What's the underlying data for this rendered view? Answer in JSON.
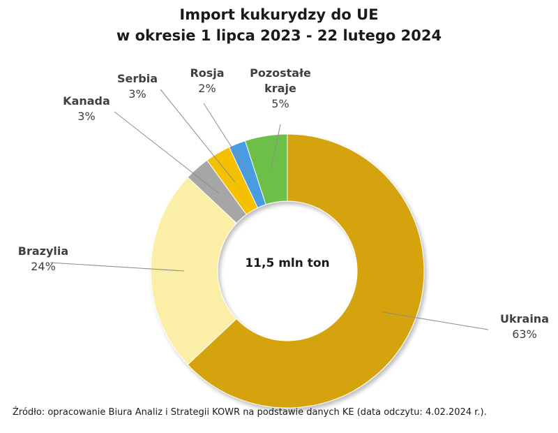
{
  "chart_data": {
    "type": "pie",
    "title": [
      "Import kukurydzy do UE",
      "w okresie 1 lipca 2023 - 22 lutego 2024"
    ],
    "center_label": "11,5 mln ton",
    "slices": [
      {
        "name": "Ukraina",
        "label_lines": [
          "Ukraina"
        ],
        "value": 63,
        "percent_label": "63%",
        "color": "#D4A30B"
      },
      {
        "name": "Brazylia",
        "label_lines": [
          "Brazylia"
        ],
        "value": 24,
        "percent_label": "24%",
        "color": "#FBEFA8"
      },
      {
        "name": "Kanada",
        "label_lines": [
          "Kanada"
        ],
        "value": 3,
        "percent_label": "3%",
        "color": "#A6A6A6"
      },
      {
        "name": "Serbia",
        "label_lines": [
          "Serbia"
        ],
        "value": 3,
        "percent_label": "3%",
        "color": "#F5C000"
      },
      {
        "name": "Rosja",
        "label_lines": [
          "Rosja"
        ],
        "value": 2,
        "percent_label": "2%",
        "color": "#4A9BE2"
      },
      {
        "name": "Pozostałe kraje",
        "label_lines": [
          "Pozostałe",
          "kraje"
        ],
        "value": 5,
        "percent_label": "5%",
        "color": "#6CC04A"
      }
    ]
  },
  "source": "Źródło: opracowanie Biura Analiz i Strategii KOWR na podstawie danych KE (data odczytu: 4.02.2024 r.)."
}
